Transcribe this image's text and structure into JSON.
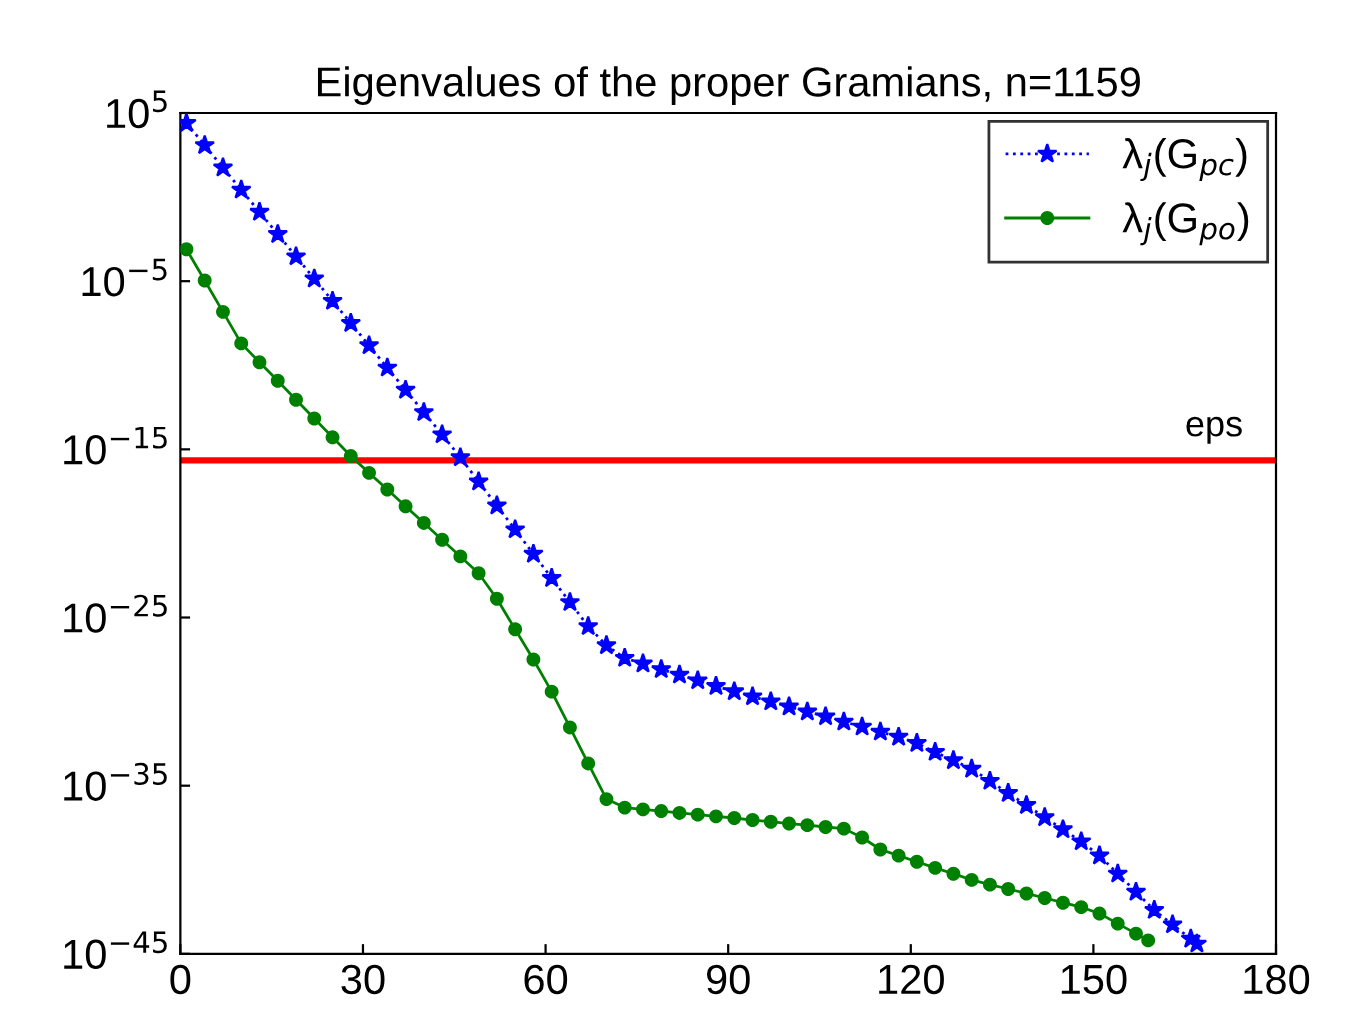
{
  "chart_data": {
    "type": "line",
    "title": "Eigenvalues of the proper Gramians, n=1159",
    "log": "y",
    "grid": false,
    "legend": "top right",
    "xlim": [
      0,
      180
    ],
    "xticks": [
      0,
      30,
      60,
      90,
      120,
      150,
      180
    ],
    "ylim": [
      1e-45,
      100000.0
    ],
    "yticks": [
      {
        "value": 100000.0,
        "label": "10$^{5}$"
      },
      {
        "value": 1e-05,
        "label": "10$^{−5}$"
      },
      {
        "value": 1e-15,
        "label": "10$^{−15}$"
      },
      {
        "value": 1e-25,
        "label": "10$^{−25}$"
      },
      {
        "value": 1e-35,
        "label": "10$^{−35}$"
      },
      {
        "value": 1e-45,
        "label": "10$^{−45}$"
      }
    ],
    "ref_lines": [
      {
        "axis": "y",
        "value": 2.2e-16,
        "label": "eps",
        "color": "#ff0000",
        "line_style": "solid"
      }
    ],
    "series": [
      {
        "name": "λ$_{j}$(G$_{pc}$)",
        "color": "#0000ff",
        "marker": "star",
        "line_style": "dotted",
        "x": [
          1,
          4,
          7,
          10,
          13,
          16,
          19,
          22,
          25,
          28,
          31,
          34,
          37,
          40,
          43,
          46,
          49,
          52,
          55,
          58,
          61,
          64,
          67,
          70,
          73,
          76,
          79,
          82,
          85,
          88,
          91,
          94,
          97,
          100,
          103,
          106,
          109,
          112,
          115,
          118,
          121,
          124,
          127,
          130,
          133,
          136,
          139,
          142,
          145,
          148,
          151,
          154,
          157,
          160,
          163,
          166,
          167
        ],
        "values": [
          25000.0,
          1200.0,
          56.0,
          2.7,
          0.13,
          0.0062,
          0.00029,
          1.4e-05,
          6.6e-07,
          3.2e-08,
          1.5e-09,
          7.1e-11,
          3.4e-12,
          1.6e-13,
          7.6e-15,
          3.3e-16,
          1.2e-17,
          4.5e-19,
          1.7e-20,
          6e-22,
          2.2e-23,
          8.1e-25,
          3e-26,
          2.2e-27,
          3.9e-28,
          1.8e-28,
          8.3e-29,
          3.9e-29,
          1.8e-29,
          8.3e-30,
          4e-30,
          2e-30,
          1e-30,
          5e-31,
          2.5e-31,
          1.3e-31,
          6.3e-32,
          3.2e-32,
          1.6e-32,
          7.9e-33,
          3.4e-33,
          1e-33,
          3.2e-34,
          1e-34,
          1.9e-35,
          3.6e-36,
          6.9e-37,
          1.3e-37,
          2.5e-38,
          4.8e-39,
          6.9e-40,
          5.8e-41,
          4.8e-42,
          4e-43,
          5.5e-44,
          7.8e-45,
          4e-45
        ]
      },
      {
        "name": "λ$_{j}$(G$_{po}$)",
        "color": "#008000",
        "marker": "circle",
        "line_style": "solid",
        "x": [
          1,
          4,
          7,
          10,
          13,
          16,
          19,
          22,
          25,
          28,
          31,
          34,
          37,
          40,
          43,
          46,
          49,
          52,
          55,
          58,
          61,
          64,
          67,
          70,
          73,
          76,
          79,
          82,
          85,
          88,
          91,
          94,
          97,
          100,
          103,
          106,
          109,
          112,
          115,
          118,
          121,
          124,
          127,
          130,
          133,
          136,
          139,
          142,
          145,
          148,
          151,
          154,
          157,
          159
        ],
        "values": [
          0.00079,
          1.1e-05,
          1.5e-07,
          2e-09,
          1.5e-10,
          1.2e-11,
          8.9e-13,
          6.8e-14,
          5.2e-15,
          4e-16,
          4e-17,
          4.1e-18,
          4.1e-19,
          4.2e-20,
          4.2e-21,
          4.3e-22,
          4.3e-23,
          1.3e-24,
          2e-26,
          3.2e-28,
          3.9e-30,
          2.9e-32,
          2.1e-34,
          1.6e-36,
          5e-37,
          3.9e-37,
          3.1e-37,
          2.4e-37,
          1.9e-37,
          1.5e-37,
          1.2e-37,
          9.1e-38,
          7.2e-38,
          5.6e-38,
          4.5e-38,
          3.5e-38,
          2.8e-38,
          8.3e-39,
          1.6e-39,
          6.9e-40,
          3e-40,
          1.3e-40,
          5.8e-41,
          2.5e-41,
          1.3e-41,
          7.2e-42,
          3.9e-42,
          2.1e-42,
          1.1e-42,
          6e-43,
          2.5e-43,
          6.3e-44,
          1.6e-44,
          6.3e-45
        ]
      }
    ]
  }
}
